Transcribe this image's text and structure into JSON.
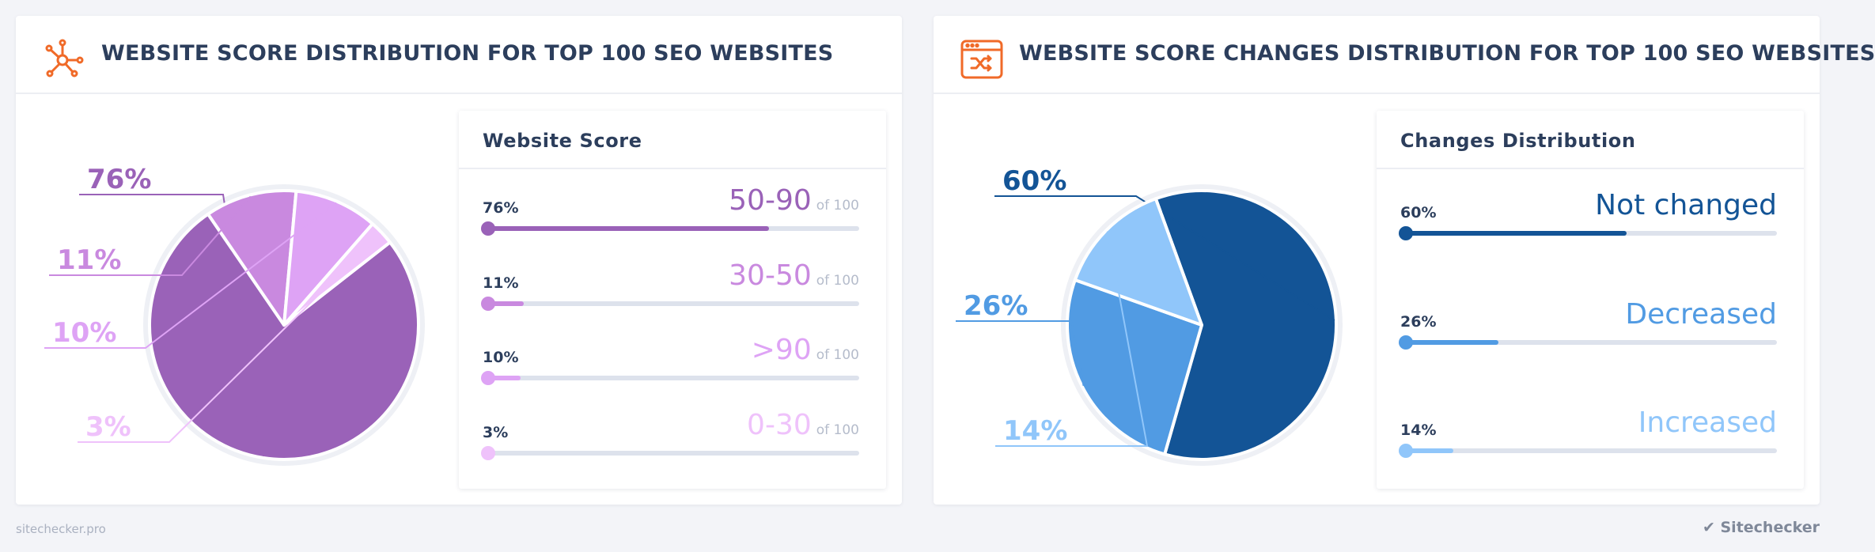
{
  "panels": [
    {
      "title": "WEBSITE SCORE DISTRIBUTION FOR TOP 100 SEO WEBSITES",
      "legend_title": "Website Score",
      "icon": "network-icon",
      "legend": [
        {
          "pct": "76%",
          "category": "50-90",
          "suffix": "of 100"
        },
        {
          "pct": "11%",
          "category": "30-50",
          "suffix": "of 100"
        },
        {
          "pct": "10%",
          "category": ">90",
          "suffix": "of 100"
        },
        {
          "pct": "3%",
          "category": "0-30",
          "suffix": "of 100"
        }
      ]
    },
    {
      "title": "WEBSITE SCORE CHANGES DISTRIBUTION FOR TOP 100 SEO WEBSITES",
      "legend_title": "Changes Distribution",
      "icon": "shuffle-window-icon",
      "legend": [
        {
          "pct": "60%",
          "category": "Not changed",
          "suffix": ""
        },
        {
          "pct": "26%",
          "category": "Decreased",
          "suffix": ""
        },
        {
          "pct": "14%",
          "category": "Increased",
          "suffix": ""
        }
      ]
    }
  ],
  "chart_data": [
    {
      "type": "pie",
      "title": "WEBSITE SCORE DISTRIBUTION FOR TOP 100 SEO WEBSITES",
      "categories": [
        "50-90",
        "30-50",
        ">90",
        "0-30"
      ],
      "values": [
        76,
        11,
        10,
        3
      ],
      "colors": [
        "#9a62b8",
        "#c989df",
        "#dea3f5",
        "#efc2fb"
      ],
      "legend_title": "Website Score",
      "legend_placement": "right"
    },
    {
      "type": "pie",
      "title": "WEBSITE SCORE CHANGES DISTRIBUTION FOR TOP 100 SEO WEBSITES",
      "categories": [
        "Not changed",
        "Decreased",
        "Increased"
      ],
      "values": [
        60,
        26,
        14
      ],
      "colors": [
        "#135496",
        "#519be3",
        "#90c6fa"
      ],
      "legend_title": "Changes Distribution",
      "legend_placement": "right"
    }
  ],
  "colors": {
    "accent_orange": "#f06a28",
    "title": "#2c3e5c",
    "track": "#dde2ec"
  },
  "footer": {
    "left": "sitechecker.pro",
    "right": "Sitechecker"
  }
}
